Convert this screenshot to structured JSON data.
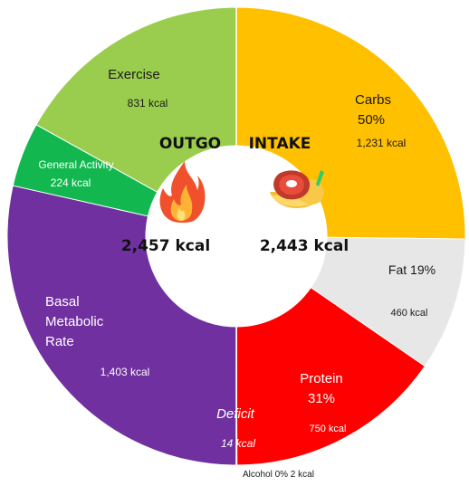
{
  "colors": {
    "exercise": "#9ACD4E",
    "general_activity": "#12B84F",
    "bmr": "#7030A0",
    "deficit": "#7030A0",
    "carbs": "#FFC000",
    "fat": "#E7E7E7",
    "protein": "#FF0000",
    "alcohol": "#8C5A2B",
    "hole": "#FFFFFF"
  },
  "icons": {
    "outgo": "flame-icon",
    "intake": "steak-icon"
  },
  "chart_data": {
    "type": "pie",
    "style": "donut",
    "legend": "none",
    "halves": [
      {
        "name": "OUTGO",
        "side": "left",
        "total_label": "2,457 kcal",
        "total": 2457,
        "slices": [
          {
            "id": "exercise",
            "label": "Exercise",
            "value_label": "831 kcal",
            "value": 831
          },
          {
            "id": "general_activity",
            "label": "General Activity",
            "value_label": "224 kcal",
            "value": 224
          },
          {
            "id": "bmr",
            "label": "Basal Metabolic Rate",
            "value_label": "1,403 kcal",
            "value": 1403
          }
        ],
        "annotation": {
          "label": "Deficit",
          "value_label": "14 kcal",
          "value": 14
        }
      },
      {
        "name": "INTAKE",
        "side": "right",
        "total_label": "2,443 kcal",
        "total": 2443,
        "slices": [
          {
            "id": "carbs",
            "label": "Carbs",
            "percent_label": "50%",
            "value_label": "1,231 kcal",
            "value": 1231
          },
          {
            "id": "fat",
            "label": "Fat",
            "percent_label": "19%",
            "value_label": "460 kcal",
            "value": 460
          },
          {
            "id": "protein",
            "label": "Protein",
            "percent_label": "31%",
            "value_label": "750 kcal",
            "value": 750
          },
          {
            "id": "alcohol",
            "label": "Alcohol",
            "percent_label": "0%",
            "value_label": "2 kcal",
            "value": 2
          }
        ]
      }
    ]
  }
}
